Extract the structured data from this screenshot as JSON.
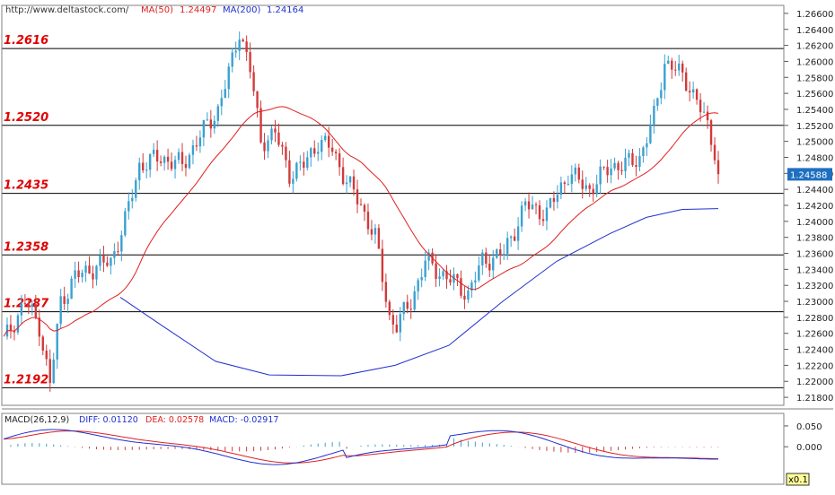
{
  "header": {
    "url": "http://www.deltastock.com/",
    "ma50_label": "MA(50)",
    "ma50_value": "1.24497",
    "ma200_label": "MA(200)",
    "ma200_value": "1.24164"
  },
  "colors": {
    "bull": "#3aa0d0",
    "bear": "#d23a3a",
    "ma50": "#e02020",
    "ma200": "#2030d0",
    "level_line": "#000000",
    "level_text": "#e00000",
    "macd_dea": "#e02020",
    "macd_diff": "#2030d0"
  },
  "chart_data": {
    "type": "candlestick",
    "ylim": [
      1.217,
      1.267
    ],
    "y_ticks": [
      "1.26600",
      "1.26400",
      "1.26200",
      "1.26000",
      "1.25800",
      "1.25600",
      "1.25400",
      "1.25200",
      "1.25000",
      "1.24800",
      "1.24600",
      "1.24400",
      "1.24200",
      "1.24000",
      "1.23800",
      "1.23600",
      "1.23400",
      "1.23200",
      "1.23000",
      "1.22800",
      "1.22600",
      "1.22400",
      "1.22200",
      "1.22000",
      "1.21800"
    ],
    "current_price_label": "1.24588",
    "levels": [
      {
        "value": 1.2616,
        "label": "1.2616"
      },
      {
        "value": 1.252,
        "label": "1.2520"
      },
      {
        "value": 1.2435,
        "label": "1.2435"
      },
      {
        "value": 1.2358,
        "label": "1.2358"
      },
      {
        "value": 1.2287,
        "label": "1.2287"
      },
      {
        "value": 1.2192,
        "label": "1.2192"
      }
    ],
    "candle_count": 133
  },
  "macd": {
    "label": "MACD(26,12,9)",
    "diff_label": "DIFF: 0.01120",
    "dea_label": "DEA: 0.02578",
    "macd_label": "MACD: -0.02917",
    "ylim": [
      -0.09,
      0.08
    ],
    "y_ticks": [
      "0.050",
      "0.000"
    ],
    "scale_badge": "x0.1"
  }
}
